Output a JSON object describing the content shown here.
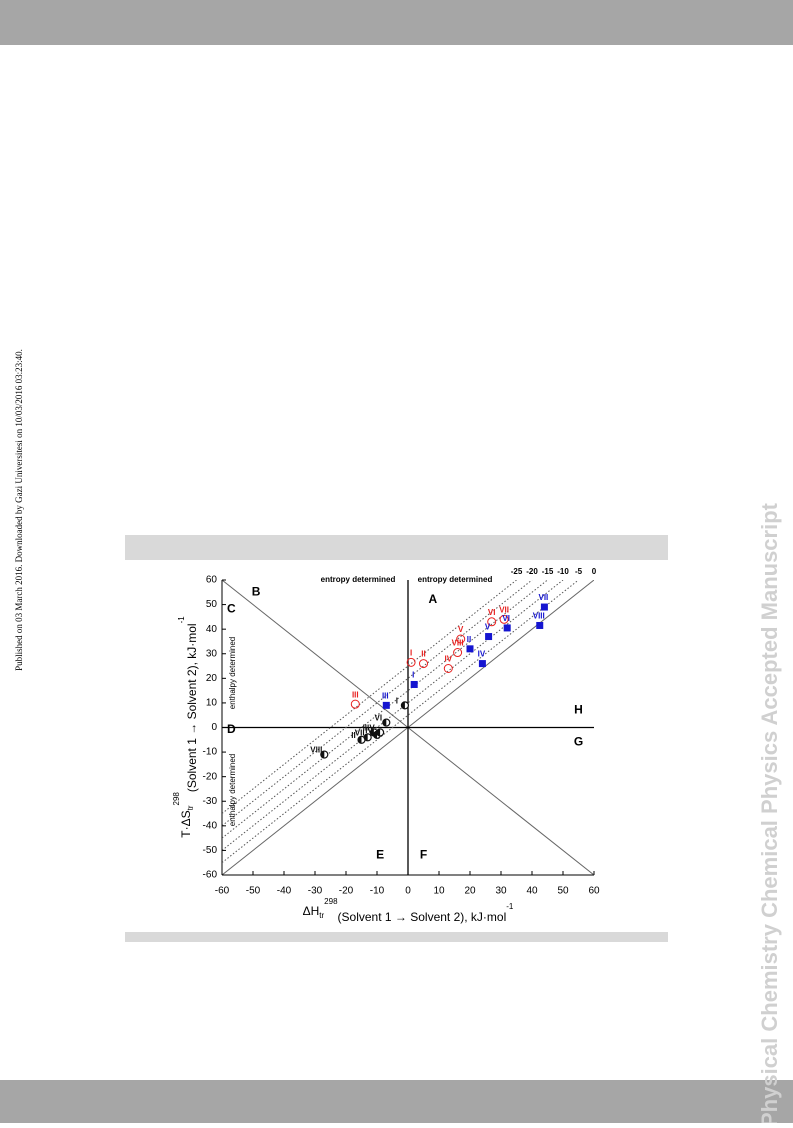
{
  "side_note": "Published on 03 March 2016. Downloaded by Gazi Universitesi on 10/03/2016 03:23:40.",
  "watermark": "Physical Chemistry Chemical Physics Accepted Manuscript",
  "chart_data": {
    "type": "scatter",
    "xlabel": {
      "main": "ΔH",
      "sub": "tr",
      "sup": "298",
      "rest": "(Solvent 1 → Solvent 2), kJ·mol",
      "unit_sup": "-1"
    },
    "ylabel": {
      "main": "T·ΔS",
      "sub": "tr",
      "sup": "298",
      "rest": "(Solvent 1 → Solvent 2), kJ·mol",
      "unit_sup": "-1"
    },
    "xlim": [
      -60,
      60
    ],
    "ylim": [
      -60,
      60
    ],
    "xticks": [
      -60,
      -50,
      -40,
      -30,
      -20,
      -10,
      0,
      10,
      20,
      30,
      40,
      50,
      60
    ],
    "yticks": [
      -60,
      -50,
      -40,
      -30,
      -20,
      -10,
      0,
      10,
      20,
      30,
      40,
      50,
      60
    ],
    "guide_lines": [
      -25,
      -20,
      -15,
      -10,
      -5,
      0
    ],
    "regions": [
      "A",
      "B",
      "C",
      "D",
      "E",
      "F",
      "G",
      "H"
    ],
    "annotations": [
      "entropy determined",
      "entropy determined",
      "enthalpy determined",
      "enthalpy determined"
    ],
    "series": [
      {
        "color": "#e8201f",
        "marker": "open-circle",
        "labels": [
          "I",
          "II",
          "III",
          "IV",
          "V",
          "VI",
          "VII",
          "VIII"
        ],
        "x": [
          1,
          5,
          -17,
          13,
          17,
          27,
          31,
          16
        ],
        "values": [
          26.5,
          26,
          9.5,
          24,
          36,
          43,
          44,
          30.5
        ]
      },
      {
        "color": "#1515d0",
        "marker": "square",
        "labels": [
          "I",
          "II",
          "III",
          "IV",
          "V",
          "VI",
          "VII",
          "VIII"
        ],
        "x": [
          2,
          20,
          -7,
          24,
          26,
          32,
          44,
          42.5
        ],
        "values": [
          17.5,
          32,
          9,
          26,
          37,
          40.5,
          49,
          41.5
        ]
      },
      {
        "color": "#111111",
        "marker": "half-circle",
        "labels": [
          "I",
          "II",
          "III",
          "IV",
          "V",
          "VI",
          "VII",
          "VIII"
        ],
        "x": [
          -1,
          -15,
          -11,
          -10,
          -9,
          -7,
          -13,
          -27
        ],
        "values": [
          9,
          -5,
          -2,
          -3,
          -2,
          2,
          -4,
          -11
        ]
      }
    ]
  }
}
